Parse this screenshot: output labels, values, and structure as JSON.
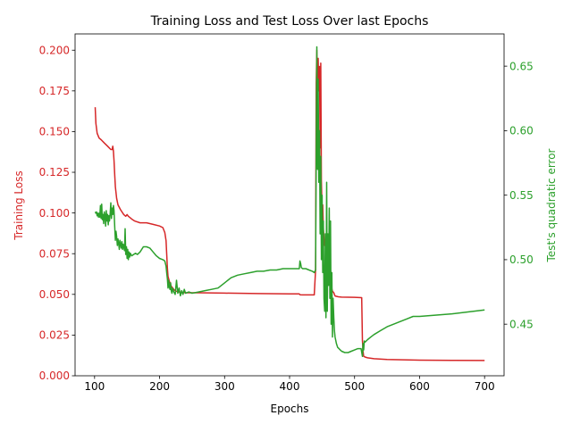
{
  "chart_data": {
    "type": "line",
    "title": "Training Loss and Test Loss Over last Epochs",
    "xlabel": "Epochs",
    "xlim": [
      70,
      730
    ],
    "xticks": [
      100,
      200,
      300,
      400,
      500,
      600,
      700
    ],
    "grid": false,
    "legend": "none",
    "axes": {
      "left": {
        "label": "Training Loss",
        "color": "#d62728",
        "ylim": [
          0.0,
          0.21
        ],
        "ticks": [
          "0.000",
          "0.025",
          "0.050",
          "0.075",
          "0.100",
          "0.125",
          "0.150",
          "0.175",
          "0.200"
        ]
      },
      "right": {
        "label": "Test's quadratic error",
        "color": "#2ca02c",
        "ylim": [
          0.41,
          0.675
        ],
        "ticks": [
          "0.45",
          "0.50",
          "0.55",
          "0.60",
          "0.65"
        ]
      }
    },
    "series": [
      {
        "axis": "left",
        "color": "#d62728",
        "x": [
          101,
          102,
          104,
          107,
          110,
          115,
          120,
          125,
          127,
          128,
          129,
          130,
          131,
          132,
          134,
          136,
          140,
          145,
          148,
          150,
          152,
          155,
          158,
          162,
          170,
          180,
          190,
          200,
          205,
          208,
          210,
          211,
          212,
          213,
          215,
          218,
          220,
          222,
          225,
          230,
          240,
          260,
          300,
          350,
          400,
          415,
          416,
          420,
          430,
          438,
          440,
          441,
          442,
          443,
          444,
          445,
          446,
          447,
          448,
          449,
          450,
          451,
          452,
          454,
          456,
          458,
          460,
          462,
          464,
          466,
          468,
          470,
          475,
          480,
          500,
          511,
          512,
          513,
          514,
          516,
          520,
          530,
          550,
          600,
          650,
          700
        ],
        "y": [
          0.165,
          0.155,
          0.149,
          0.146,
          0.145,
          0.143,
          0.141,
          0.139,
          0.139,
          0.141,
          0.138,
          0.132,
          0.123,
          0.116,
          0.109,
          0.105,
          0.102,
          0.099,
          0.098,
          0.099,
          0.098,
          0.097,
          0.096,
          0.095,
          0.094,
          0.094,
          0.093,
          0.092,
          0.091,
          0.088,
          0.083,
          0.075,
          0.066,
          0.061,
          0.058,
          0.055,
          0.054,
          0.053,
          0.052,
          0.0515,
          0.051,
          0.051,
          0.0508,
          0.0505,
          0.0503,
          0.0503,
          0.0498,
          0.0497,
          0.0497,
          0.0497,
          0.065,
          0.18,
          0.2,
          0.15,
          0.195,
          0.175,
          0.19,
          0.14,
          0.192,
          0.12,
          0.1,
          0.105,
          0.09,
          0.08,
          0.082,
          0.075,
          0.07,
          0.066,
          0.055,
          0.052,
          0.051,
          0.049,
          0.0485,
          0.0483,
          0.0482,
          0.048,
          0.022,
          0.015,
          0.012,
          0.0115,
          0.011,
          0.0105,
          0.01,
          0.0096,
          0.0095,
          0.0094
        ]
      },
      {
        "axis": "right",
        "color": "#2ca02c",
        "x": [
          101,
          102,
          103,
          104,
          105,
          106,
          107,
          108,
          109,
          110,
          111,
          112,
          113,
          114,
          115,
          116,
          117,
          118,
          119,
          120,
          121,
          122,
          123,
          124,
          125,
          126,
          127,
          128,
          129,
          130,
          131,
          132,
          133,
          134,
          135,
          136,
          137,
          138,
          139,
          140,
          141,
          142,
          143,
          144,
          145,
          146,
          147,
          148,
          149,
          150,
          151,
          152,
          153,
          154,
          155,
          157,
          160,
          163,
          166,
          170,
          175,
          180,
          185,
          190,
          195,
          200,
          205,
          208,
          210,
          211,
          212,
          213,
          214,
          215,
          216,
          217,
          218,
          219,
          220,
          222,
          224,
          226,
          228,
          230,
          232,
          234,
          236,
          238,
          240,
          245,
          250,
          260,
          270,
          280,
          290,
          300,
          310,
          320,
          330,
          340,
          350,
          360,
          370,
          380,
          390,
          400,
          410,
          415,
          416,
          417,
          418,
          420,
          425,
          430,
          435,
          438,
          440,
          441,
          442,
          443,
          444,
          445,
          446,
          447,
          448,
          449,
          450,
          451,
          452,
          453,
          454,
          455,
          456,
          457,
          458,
          459,
          460,
          461,
          462,
          463,
          464,
          465,
          466,
          467,
          468,
          469,
          470,
          472,
          474,
          476,
          478,
          480,
          485,
          490,
          495,
          500,
          505,
          510,
          512,
          513,
          514,
          515,
          516,
          518,
          520,
          525,
          530,
          540,
          550,
          560,
          570,
          580,
          590,
          600,
          650,
          700
        ],
        "y": [
          0.537,
          0.536,
          0.537,
          0.534,
          0.536,
          0.533,
          0.536,
          0.533,
          0.542,
          0.532,
          0.543,
          0.531,
          0.535,
          0.528,
          0.537,
          0.534,
          0.526,
          0.538,
          0.53,
          0.535,
          0.527,
          0.534,
          0.53,
          0.536,
          0.544,
          0.532,
          0.54,
          0.535,
          0.542,
          0.538,
          0.525,
          0.515,
          0.522,
          0.518,
          0.511,
          0.516,
          0.513,
          0.508,
          0.515,
          0.512,
          0.509,
          0.514,
          0.508,
          0.512,
          0.51,
          0.507,
          0.524,
          0.504,
          0.51,
          0.501,
          0.508,
          0.5,
          0.506,
          0.502,
          0.505,
          0.503,
          0.504,
          0.505,
          0.504,
          0.506,
          0.51,
          0.51,
          0.509,
          0.506,
          0.503,
          0.501,
          0.5,
          0.499,
          0.495,
          0.49,
          0.485,
          0.478,
          0.484,
          0.479,
          0.477,
          0.482,
          0.476,
          0.474,
          0.478,
          0.475,
          0.473,
          0.484,
          0.474,
          0.478,
          0.472,
          0.476,
          0.473,
          0.477,
          0.474,
          0.475,
          0.474,
          0.475,
          0.476,
          0.477,
          0.478,
          0.482,
          0.486,
          0.488,
          0.489,
          0.49,
          0.491,
          0.491,
          0.492,
          0.492,
          0.493,
          0.493,
          0.493,
          0.493,
          0.499,
          0.497,
          0.494,
          0.493,
          0.493,
          0.492,
          0.491,
          0.49,
          0.492,
          0.58,
          0.665,
          0.57,
          0.64,
          0.56,
          0.6,
          0.52,
          0.58,
          0.5,
          0.55,
          0.49,
          0.53,
          0.47,
          0.46,
          0.52,
          0.455,
          0.56,
          0.46,
          0.52,
          0.48,
          0.54,
          0.47,
          0.53,
          0.45,
          0.49,
          0.44,
          0.47,
          0.455,
          0.445,
          0.44,
          0.435,
          0.432,
          0.431,
          0.43,
          0.429,
          0.428,
          0.428,
          0.429,
          0.43,
          0.431,
          0.431,
          0.425,
          0.435,
          0.43,
          0.437,
          0.436,
          0.437,
          0.438,
          0.44,
          0.442,
          0.445,
          0.448,
          0.45,
          0.452,
          0.454,
          0.456,
          0.456,
          0.458,
          0.461
        ]
      }
    ]
  }
}
